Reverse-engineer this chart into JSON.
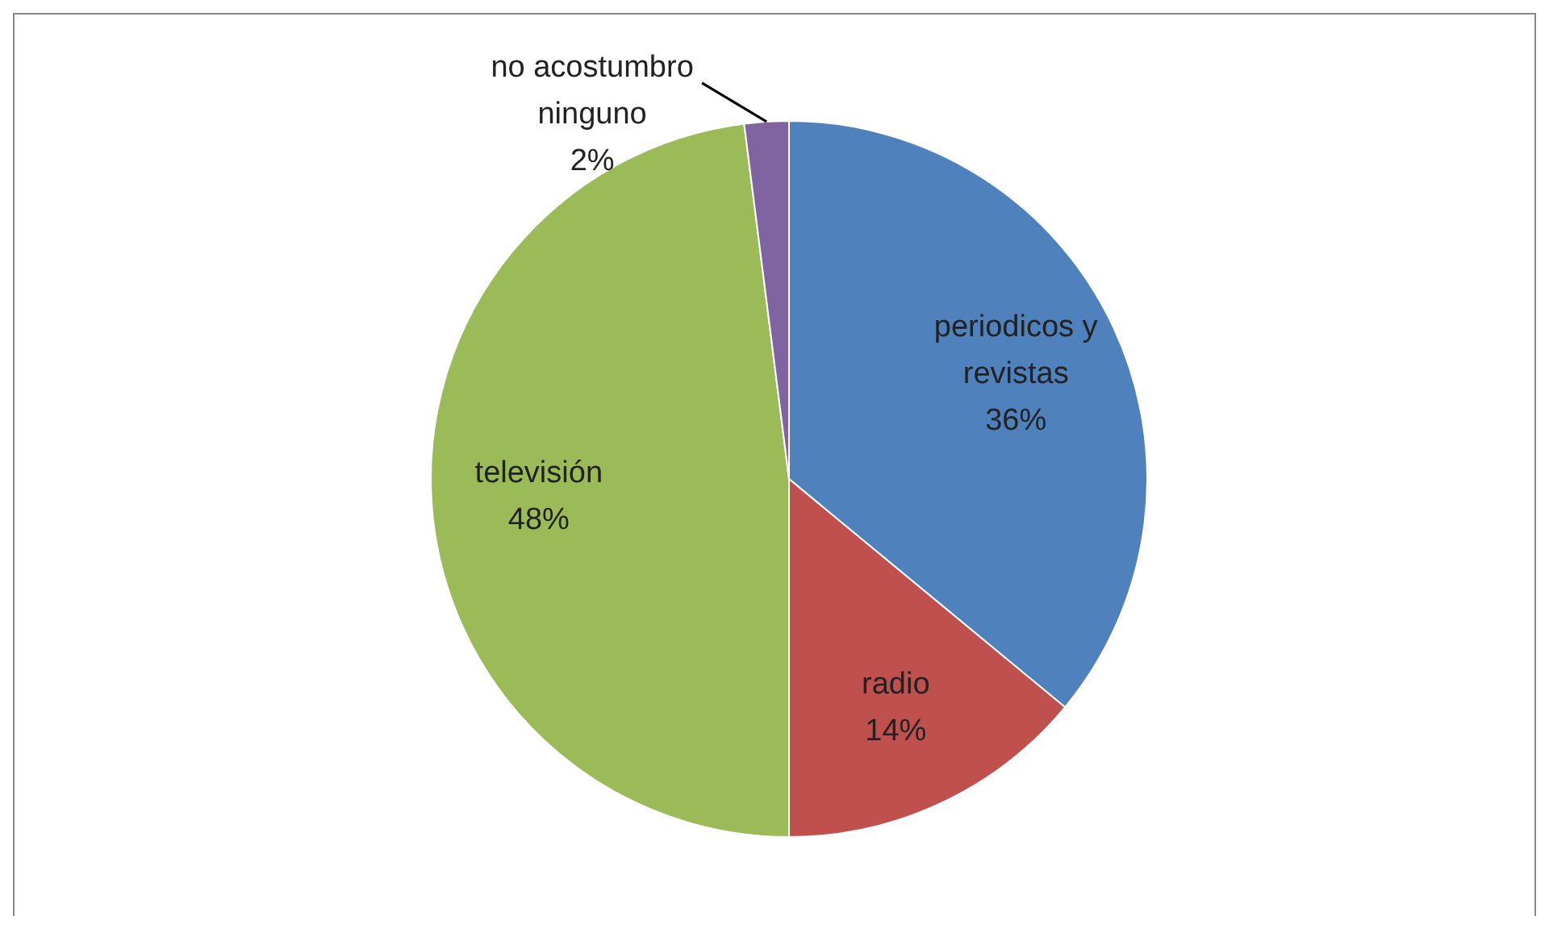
{
  "chart_data": {
    "type": "pie",
    "categories": [
      "periodicos y revistas",
      "radio",
      "televisión",
      "no acostumbro ninguno"
    ],
    "values": [
      36,
      14,
      48,
      2
    ],
    "colors": [
      "#4f81bd",
      "#c0504d",
      "#9bbb59",
      "#8064a2"
    ],
    "value_labels": [
      "36%",
      "14%",
      "48%",
      "2%"
    ],
    "legend": false
  }
}
